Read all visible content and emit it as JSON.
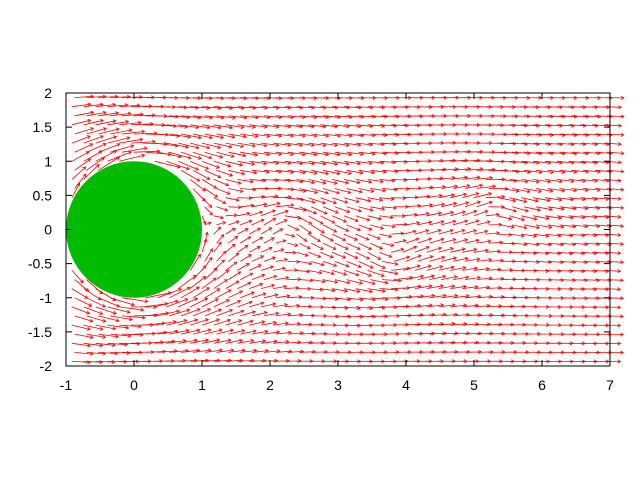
{
  "chart_data": {
    "type": "vector-field",
    "title": "",
    "xlabel": "",
    "ylabel": "",
    "xlim": [
      -1,
      7
    ],
    "ylim": [
      -2,
      2
    ],
    "x_ticks": [
      "-1",
      "0",
      "1",
      "2",
      "3",
      "4",
      "5",
      "6",
      "7"
    ],
    "y_ticks": [
      "2",
      "1.5",
      "1",
      "0.5",
      "0",
      "-0.5",
      "-1",
      "-1.5",
      "-2"
    ],
    "x_tick_values": [
      -1,
      0,
      1,
      2,
      3,
      4,
      5,
      6,
      7
    ],
    "y_tick_values": [
      2,
      1.5,
      1,
      0.5,
      0,
      -0.5,
      -1,
      -1.5,
      -2
    ],
    "grid": false,
    "series": [
      {
        "name": "velocity-field",
        "kind": "arrows",
        "color": "#ff0000",
        "description_values": "flow past cylinder with wake vortices"
      },
      {
        "name": "cylinder",
        "kind": "filled-circle",
        "color": "#00bb00",
        "center": [
          0,
          0
        ],
        "radius": 1
      }
    ],
    "vortices": [
      {
        "center": [
          2.2,
          0.15
        ],
        "strength": -1.3
      },
      {
        "center": [
          3.7,
          -0.45
        ],
        "strength": 1.1
      },
      {
        "center": [
          5.2,
          0.35
        ],
        "strength": -0.9
      }
    ]
  }
}
